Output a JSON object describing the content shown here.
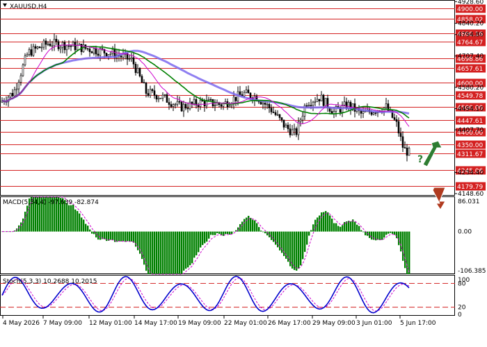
{
  "chart_data": [
    {
      "type": "candlestick",
      "title": "XAUUSD,H4",
      "price_axis_labels": [
        "4928.60",
        "4840.20",
        "4794.80",
        "4707.40",
        "4580.20",
        "4494.10",
        "4407.70",
        "4234.40",
        "4148.60"
      ],
      "levels": [
        {
          "label": "4900.00",
          "value": 4900.0
        },
        {
          "label": "4858.02",
          "value": 4858.02
        },
        {
          "label": "4800.16",
          "value": 4800.16
        },
        {
          "label": "4764.67",
          "value": 4764.67
        },
        {
          "label": "4698.86",
          "value": 4698.86
        },
        {
          "label": "4657.61",
          "value": 4657.61
        },
        {
          "label": "4600.00",
          "value": 4600.0
        },
        {
          "label": "4549.78",
          "value": 4549.78
        },
        {
          "label": "4500.00",
          "value": 4500.0
        },
        {
          "label": "4447.61",
          "value": 4447.61
        },
        {
          "label": "4400.00",
          "value": 4400.0
        },
        {
          "label": "4350.00",
          "value": 4350.0
        },
        {
          "label": "4311.67",
          "value": 4311.67
        },
        {
          "label": "4245.06",
          "value": 4245.06
        },
        {
          "label": "4179.79",
          "value": 4179.79
        }
      ],
      "ylim": [
        4140,
        4935
      ],
      "x_ticks": [
        "4 May 2026",
        "7 May 09:00",
        "12 May 01:00",
        "14 May 17:00",
        "19 May 09:00",
        "22 May 01:00",
        "26 May 17:00",
        "29 May 09:00",
        "3 Jun 01:00",
        "5 Jun 17:00"
      ],
      "ma_colors": {
        "fast": "#cc00cc",
        "mid": "#008000",
        "slow": "#7b68ee"
      },
      "arrows": [
        {
          "direction": "up",
          "color": "#2e7d32",
          "marker": "?"
        },
        {
          "direction": "down",
          "color": "#b03a1f",
          "marker": "?"
        }
      ]
    },
    {
      "type": "bar",
      "title": "MACD(5,34,4) -97.639 -82.874",
      "axis_labels": [
        "86.031",
        "0.00",
        "-106.385"
      ],
      "ylim": [
        -106.385,
        86.031
      ],
      "bar_color": "#008000",
      "signal_color": "#cc00cc"
    },
    {
      "type": "line",
      "title": "Stoch(5,3,3) 10.2688 10.2015",
      "axis_labels": [
        "100",
        "80",
        "20",
        "0"
      ],
      "ylim": [
        0,
        100
      ],
      "levels": [
        80,
        20
      ],
      "main_color": "#0000cc",
      "signal_color": "#cc00cc"
    }
  ]
}
